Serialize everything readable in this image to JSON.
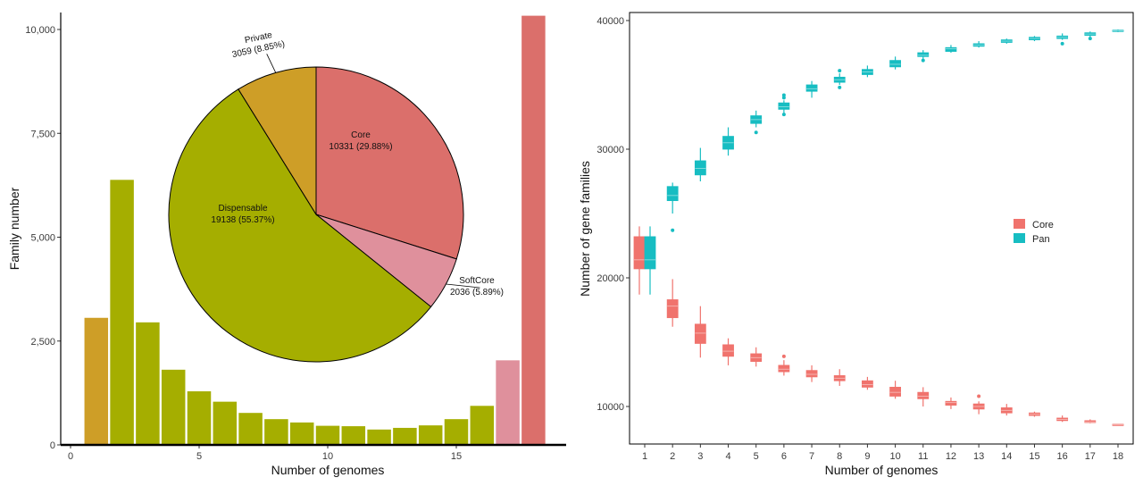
{
  "colors": {
    "core": "#db6f6b",
    "softcore": "#df909c",
    "dispensable": "#a5ae00",
    "private": "#ce9e27",
    "core_box": "#f0736d",
    "pan_box": "#17bdc2",
    "axis": "#000000"
  },
  "chart_data": [
    {
      "type": "bar",
      "xlabel": "Number of genomes",
      "ylabel": "Family number",
      "xlim": [
        -0.5,
        19.5
      ],
      "ylim": [
        0,
        10500
      ],
      "x_ticks": [
        0,
        5,
        10,
        15
      ],
      "x_tick_labels": [
        "0",
        "5",
        "10",
        "15"
      ],
      "y_ticks": [
        0,
        2500,
        5000,
        7500,
        10000
      ],
      "y_tick_labels": [
        "0",
        "2,500",
        "5,000",
        "7,500",
        "10,000"
      ],
      "grid": false,
      "bars": [
        {
          "x": 1,
          "value": 3059,
          "group": "Private"
        },
        {
          "x": 2,
          "value": 6380,
          "group": "Dispensable"
        },
        {
          "x": 3,
          "value": 2950,
          "group": "Dispensable"
        },
        {
          "x": 4,
          "value": 1810,
          "group": "Dispensable"
        },
        {
          "x": 5,
          "value": 1290,
          "group": "Dispensable"
        },
        {
          "x": 6,
          "value": 1040,
          "group": "Dispensable"
        },
        {
          "x": 7,
          "value": 770,
          "group": "Dispensable"
        },
        {
          "x": 8,
          "value": 620,
          "group": "Dispensable"
        },
        {
          "x": 9,
          "value": 540,
          "group": "Dispensable"
        },
        {
          "x": 10,
          "value": 460,
          "group": "Dispensable"
        },
        {
          "x": 11,
          "value": 450,
          "group": "Dispensable"
        },
        {
          "x": 12,
          "value": 370,
          "group": "Dispensable"
        },
        {
          "x": 13,
          "value": 410,
          "group": "Dispensable"
        },
        {
          "x": 14,
          "value": 470,
          "group": "Dispensable"
        },
        {
          "x": 15,
          "value": 620,
          "group": "Dispensable"
        },
        {
          "x": 16,
          "value": 940,
          "group": "Dispensable"
        },
        {
          "x": 17,
          "value": 2036,
          "group": "SoftCore"
        },
        {
          "x": 18,
          "value": 10331,
          "group": "Core"
        }
      ],
      "inset_pie": {
        "type": "pie",
        "start_angle_deg": 0,
        "slices": [
          {
            "name": "Core",
            "detail": "10331 (29.88%)",
            "value": 10331,
            "color_key": "core"
          },
          {
            "name": "SoftCore",
            "detail": "2036 (5.89%)",
            "value": 2036,
            "color_key": "softcore"
          },
          {
            "name": "Dispensable",
            "detail": "19138 (55.37%)",
            "value": 19138,
            "color_key": "dispensable"
          },
          {
            "name": "Private",
            "detail": "3059 (8.85%)",
            "value": 3059,
            "color_key": "private"
          }
        ]
      }
    },
    {
      "type": "box",
      "xlabel": "Number of genomes",
      "ylabel": "Number of gene families",
      "x_categories": [
        "1",
        "2",
        "3",
        "4",
        "5",
        "6",
        "7",
        "8",
        "9",
        "10",
        "11",
        "12",
        "13",
        "14",
        "15",
        "16",
        "17",
        "18"
      ],
      "ylim": [
        8600,
        40600
      ],
      "y_ticks": [
        10000,
        20000,
        30000,
        40000
      ],
      "y_tick_labels": [
        "10000",
        "20000",
        "30000",
        "40000"
      ],
      "grid": false,
      "legend": {
        "position": "right",
        "entries": [
          "Core",
          "Pan"
        ]
      },
      "series": [
        {
          "name": "Core",
          "color_key": "core_box",
          "boxes": [
            {
              "x": 1,
              "whisker_low": 18700,
              "q1": 20700,
              "median": 21400,
              "q3": 23200,
              "whisker_high": 24000,
              "outliers": []
            },
            {
              "x": 2,
              "whisker_low": 16200,
              "q1": 16900,
              "median": 17800,
              "q3": 18300,
              "whisker_high": 19900,
              "outliers": []
            },
            {
              "x": 3,
              "whisker_low": 13800,
              "q1": 14900,
              "median": 15700,
              "q3": 16400,
              "whisker_high": 17800,
              "outliers": []
            },
            {
              "x": 4,
              "whisker_low": 13200,
              "q1": 13900,
              "median": 14300,
              "q3": 14800,
              "whisker_high": 15300,
              "outliers": []
            },
            {
              "x": 5,
              "whisker_low": 13100,
              "q1": 13500,
              "median": 13800,
              "q3": 14100,
              "whisker_high": 14600,
              "outliers": []
            },
            {
              "x": 6,
              "whisker_low": 12400,
              "q1": 12700,
              "median": 12900,
              "q3": 13200,
              "whisker_high": 13600,
              "outliers": [
                13900
              ]
            },
            {
              "x": 7,
              "whisker_low": 11900,
              "q1": 12300,
              "median": 12500,
              "q3": 12800,
              "whisker_high": 13200,
              "outliers": []
            },
            {
              "x": 8,
              "whisker_low": 11600,
              "q1": 12000,
              "median": 12200,
              "q3": 12400,
              "whisker_high": 12900,
              "outliers": []
            },
            {
              "x": 9,
              "whisker_low": 11300,
              "q1": 11500,
              "median": 11700,
              "q3": 12000,
              "whisker_high": 12300,
              "outliers": []
            },
            {
              "x": 10,
              "whisker_low": 10600,
              "q1": 10800,
              "median": 11100,
              "q3": 11500,
              "whisker_high": 12000,
              "outliers": []
            },
            {
              "x": 11,
              "whisker_low": 10000,
              "q1": 10600,
              "median": 10800,
              "q3": 11100,
              "whisker_high": 11500,
              "outliers": []
            },
            {
              "x": 12,
              "whisker_low": 9800,
              "q1": 10100,
              "median": 10300,
              "q3": 10400,
              "whisker_high": 10700,
              "outliers": []
            },
            {
              "x": 13,
              "whisker_low": 9400,
              "q1": 9800,
              "median": 10000,
              "q3": 10200,
              "whisker_high": 10400,
              "outliers": [
                10800
              ]
            },
            {
              "x": 14,
              "whisker_low": 9300,
              "q1": 9500,
              "median": 9700,
              "q3": 9900,
              "whisker_high": 10200,
              "outliers": []
            },
            {
              "x": 15,
              "whisker_low": 9200,
              "q1": 9300,
              "median": 9400,
              "q3": 9500,
              "whisker_high": 9600,
              "outliers": []
            },
            {
              "x": 16,
              "whisker_low": 8800,
              "q1": 8900,
              "median": 9000,
              "q3": 9100,
              "whisker_high": 9300,
              "outliers": []
            },
            {
              "x": 17,
              "whisker_low": 8700,
              "q1": 8750,
              "median": 8800,
              "q3": 8900,
              "whisker_high": 9000,
              "outliers": []
            },
            {
              "x": 18,
              "whisker_low": 8550,
              "q1": 8570,
              "median": 8590,
              "q3": 8620,
              "whisker_high": 8640,
              "outliers": []
            }
          ]
        },
        {
          "name": "Pan",
          "color_key": "pan_box",
          "boxes": [
            {
              "x": 1,
              "whisker_low": 18700,
              "q1": 20700,
              "median": 21400,
              "q3": 23200,
              "whisker_high": 24000,
              "outliers": []
            },
            {
              "x": 2,
              "whisker_low": 25000,
              "q1": 26000,
              "median": 26400,
              "q3": 27100,
              "whisker_high": 27400,
              "outliers": [
                23700
              ]
            },
            {
              "x": 3,
              "whisker_low": 27500,
              "q1": 28000,
              "median": 28500,
              "q3": 29100,
              "whisker_high": 30100,
              "outliers": []
            },
            {
              "x": 4,
              "whisker_low": 29500,
              "q1": 30000,
              "median": 30500,
              "q3": 31000,
              "whisker_high": 31700,
              "outliers": []
            },
            {
              "x": 5,
              "whisker_low": 31700,
              "q1": 32000,
              "median": 32300,
              "q3": 32600,
              "whisker_high": 33000,
              "outliers": [
                31300
              ]
            },
            {
              "x": 6,
              "whisker_low": 32800,
              "q1": 33100,
              "median": 33300,
              "q3": 33600,
              "whisker_high": 33800,
              "outliers": [
                34000,
                34200,
                32700
              ]
            },
            {
              "x": 7,
              "whisker_low": 34000,
              "q1": 34500,
              "median": 34700,
              "q3": 35000,
              "whisker_high": 35300,
              "outliers": []
            },
            {
              "x": 8,
              "whisker_low": 35000,
              "q1": 35200,
              "median": 35400,
              "q3": 35600,
              "whisker_high": 35900,
              "outliers": [
                36100,
                34800
              ]
            },
            {
              "x": 9,
              "whisker_low": 35600,
              "q1": 35800,
              "median": 36000,
              "q3": 36200,
              "whisker_high": 36500,
              "outliers": []
            },
            {
              "x": 10,
              "whisker_low": 36200,
              "q1": 36400,
              "median": 36600,
              "q3": 36900,
              "whisker_high": 37200,
              "outliers": []
            },
            {
              "x": 11,
              "whisker_low": 37000,
              "q1": 37200,
              "median": 37300,
              "q3": 37500,
              "whisker_high": 37700,
              "outliers": [
                36900
              ]
            },
            {
              "x": 12,
              "whisker_low": 37500,
              "q1": 37600,
              "median": 37800,
              "q3": 37900,
              "whisker_high": 38100,
              "outliers": []
            },
            {
              "x": 13,
              "whisker_low": 37900,
              "q1": 38000,
              "median": 38100,
              "q3": 38200,
              "whisker_high": 38400,
              "outliers": []
            },
            {
              "x": 14,
              "whisker_low": 38200,
              "q1": 38300,
              "median": 38400,
              "q3": 38500,
              "whisker_high": 38600,
              "outliers": []
            },
            {
              "x": 15,
              "whisker_low": 38400,
              "q1": 38500,
              "median": 38600,
              "q3": 38700,
              "whisker_high": 38800,
              "outliers": []
            },
            {
              "x": 16,
              "whisker_low": 38500,
              "q1": 38600,
              "median": 38700,
              "q3": 38800,
              "whisker_high": 39000,
              "outliers": [
                38200
              ]
            },
            {
              "x": 17,
              "whisker_low": 38700,
              "q1": 38850,
              "median": 38950,
              "q3": 39050,
              "whisker_high": 39150,
              "outliers": [
                38600
              ]
            },
            {
              "x": 18,
              "whisker_low": 39100,
              "q1": 39150,
              "median": 39200,
              "q3": 39250,
              "whisker_high": 39300,
              "outliers": []
            }
          ]
        }
      ]
    }
  ]
}
